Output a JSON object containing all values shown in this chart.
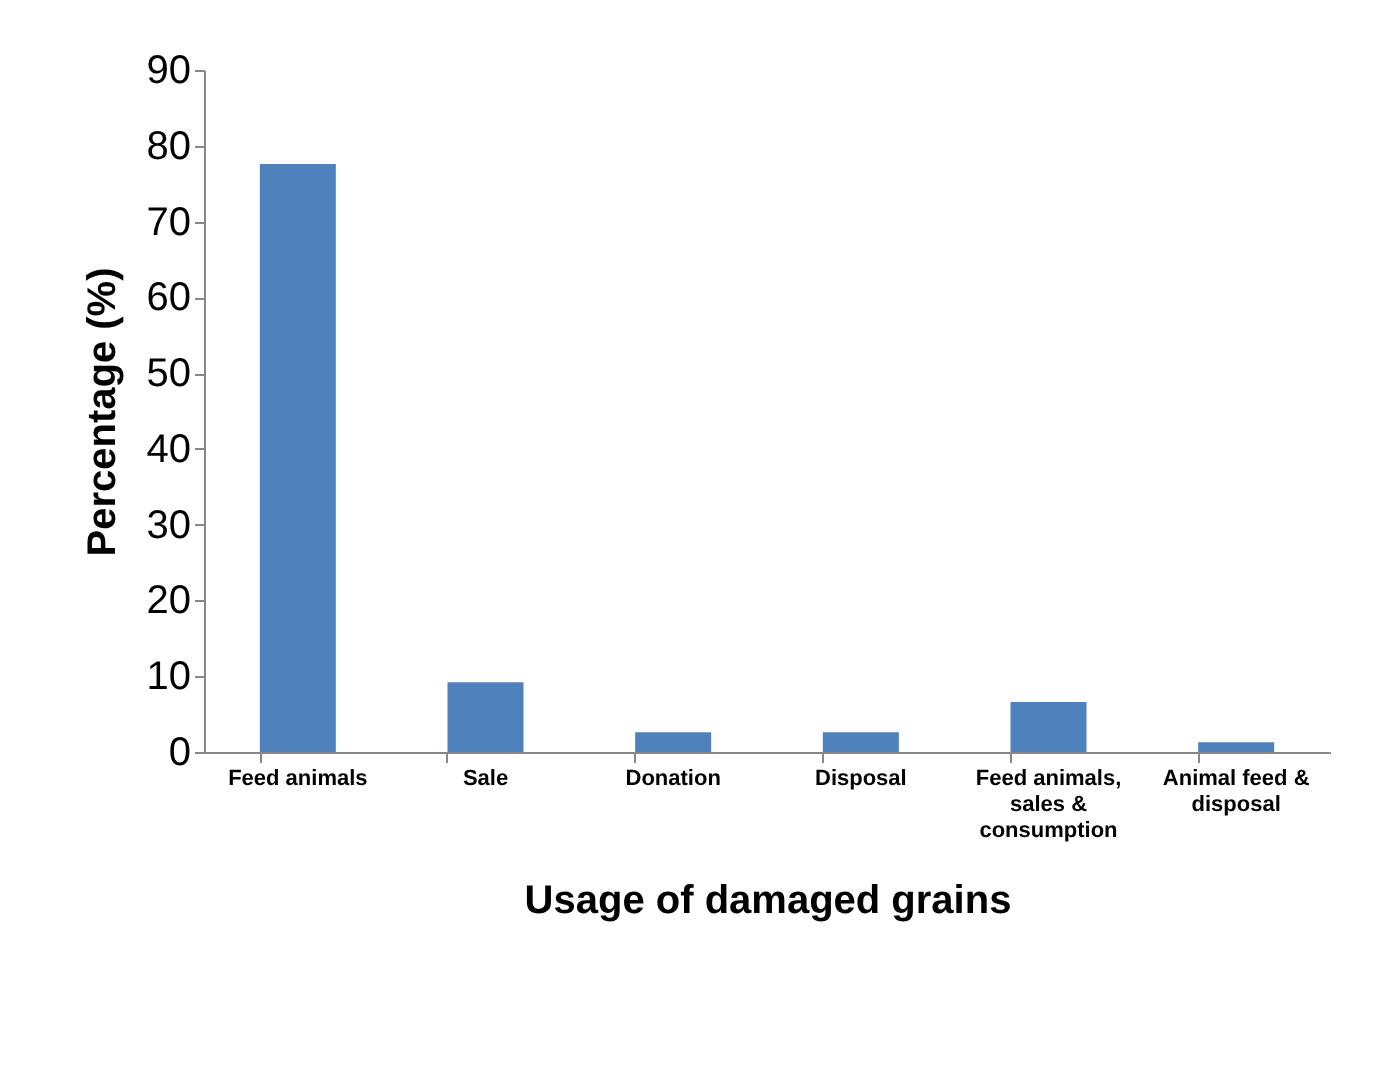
{
  "chart_data": {
    "type": "bar",
    "xlabel": "Usage of damaged grains",
    "ylabel": "Percentage (%)",
    "categories": [
      "Feed animals",
      "Sale",
      "Donation",
      "Disposal",
      "Feed animals, sales & consumption",
      "Animal feed & disposal"
    ],
    "values": [
      77.6,
      9.2,
      2.6,
      2.6,
      6.6,
      1.3
    ],
    "color": "#4f81bd",
    "ylim": [
      0,
      90
    ],
    "yticks": [
      0,
      10,
      20,
      30,
      40,
      50,
      60,
      70,
      80,
      90
    ],
    "grid": false
  }
}
